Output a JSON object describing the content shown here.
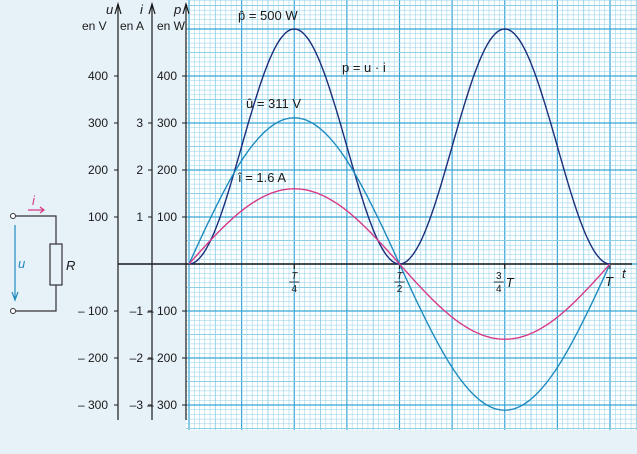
{
  "chart_data": {
    "type": "line",
    "x_ticks": [
      {
        "at": 0.25,
        "num": "T",
        "den": "4",
        "suffix": ""
      },
      {
        "at": 0.5,
        "num": "T",
        "den": "2",
        "suffix": ""
      },
      {
        "at": 0.75,
        "num": "3",
        "den": "4",
        "suffix": "T"
      },
      {
        "at": 1.0,
        "num": "",
        "den": "",
        "suffix": "T"
      }
    ],
    "x_axis_label": "t",
    "x_range": [
      0,
      1
    ],
    "axes": {
      "u": {
        "symbol": "u",
        "unit": "en V",
        "range": [
          -330,
          520
        ],
        "ticks": [
          -300,
          -200,
          -100,
          100,
          200,
          300,
          400
        ],
        "labels": [
          "– 300",
          "– 200",
          "– 100",
          "100",
          "200",
          "300",
          "400"
        ]
      },
      "i": {
        "symbol": "i",
        "unit": "en A",
        "range": [
          -3.3,
          5.2
        ],
        "ticks": [
          -3,
          -2,
          -1,
          1,
          2,
          3
        ],
        "labels": [
          "–3",
          "–2",
          "–1",
          "1",
          "2",
          "3"
        ]
      },
      "p": {
        "symbol": "p",
        "unit": "en W",
        "range": [
          -330,
          520
        ],
        "ticks": [
          -300,
          -200,
          -100,
          100,
          200,
          300,
          400
        ],
        "labels": [
          "– 300",
          "– 200",
          "– 100",
          "100",
          "200",
          "300",
          "400"
        ]
      }
    },
    "series": [
      {
        "name": "p = u · i",
        "axis": "p",
        "kind": "sin2",
        "peak": 500,
        "period_fraction": 1,
        "color": "#1b2f7a"
      },
      {
        "name": "û = 311 V",
        "axis": "u",
        "kind": "sin",
        "peak": 311,
        "color": "#1f8bbf"
      },
      {
        "name": "î = 1.6 A",
        "axis": "i",
        "kind": "sin",
        "peak": 1.6,
        "color": "#d63a87"
      }
    ],
    "annotations": [
      {
        "text": "p̂ = 500 W",
        "id": "p-peak"
      },
      {
        "text": "p = u · i",
        "id": "p-formula"
      },
      {
        "text": "û = 311 V",
        "id": "u-peak"
      },
      {
        "text": "î = 1.6 A",
        "id": "i-peak"
      }
    ],
    "grid": true
  },
  "circuit": {
    "current_label": "i",
    "voltage_label": "u",
    "resistor_label": "R"
  },
  "colors": {
    "grid_minor": "#8ecfe8",
    "grid_major": "#37a6d6",
    "paper": "#ffffff",
    "p_curve": "#1b2f7a",
    "u_curve": "#1f8bbf",
    "i_curve": "#d63a87",
    "axis": "#1a1a1a"
  }
}
